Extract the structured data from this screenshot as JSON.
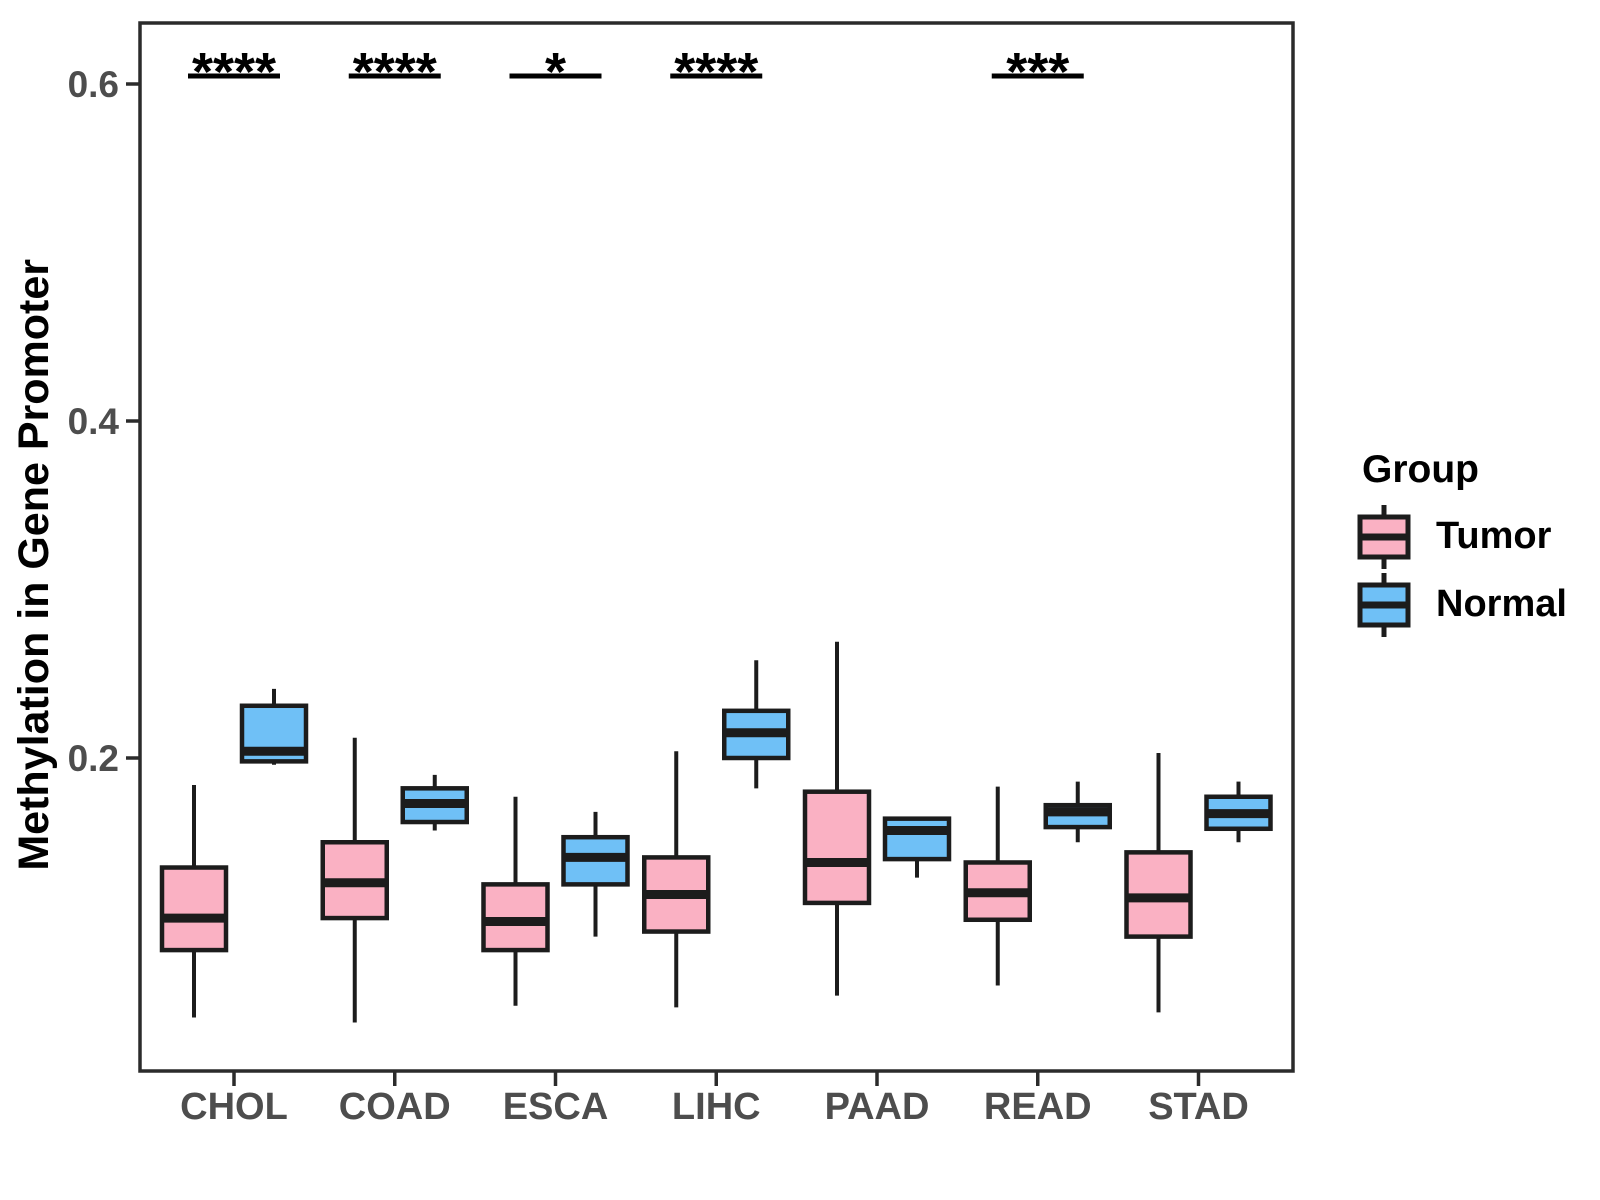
{
  "chart_data": {
    "type": "grouped_boxplot",
    "title": "",
    "ylabel": "Methylation in Gene Promoter",
    "xlabel": "",
    "categories": [
      "CHOL",
      "COAD",
      "ESCA",
      "LIHC",
      "PAAD",
      "READ",
      "STAD"
    ],
    "groups": [
      "Tumor",
      "Normal"
    ],
    "ylim": [
      0.02,
      0.64
    ],
    "yticks": [
      {
        "value": 0.2,
        "label": "0.2"
      },
      {
        "value": 0.4,
        "label": "0.4"
      },
      {
        "value": 0.6,
        "label": "0.6"
      }
    ],
    "grid": false,
    "legend": {
      "title": "Group",
      "position": "right",
      "items": [
        {
          "label": "Tumor",
          "color": "#FAB1C3"
        },
        {
          "label": "Normal",
          "color": "#6FC0F6"
        }
      ]
    },
    "series": [
      {
        "name": "Tumor",
        "color": "#FAB1C3",
        "boxes": [
          {
            "category": "CHOL",
            "whisker_low": 0.046,
            "q1": 0.086,
            "median": 0.105,
            "q3": 0.135,
            "whisker_high": 0.184
          },
          {
            "category": "COAD",
            "whisker_low": 0.043,
            "q1": 0.105,
            "median": 0.126,
            "q3": 0.15,
            "whisker_high": 0.212
          },
          {
            "category": "ESCA",
            "whisker_low": 0.053,
            "q1": 0.086,
            "median": 0.103,
            "q3": 0.125,
            "whisker_high": 0.177
          },
          {
            "category": "LIHC",
            "whisker_low": 0.052,
            "q1": 0.097,
            "median": 0.119,
            "q3": 0.141,
            "whisker_high": 0.204
          },
          {
            "category": "PAAD",
            "whisker_low": 0.059,
            "q1": 0.114,
            "median": 0.138,
            "q3": 0.18,
            "whisker_high": 0.269
          },
          {
            "category": "READ",
            "whisker_low": 0.065,
            "q1": 0.104,
            "median": 0.12,
            "q3": 0.138,
            "whisker_high": 0.183
          },
          {
            "category": "STAD",
            "whisker_low": 0.049,
            "q1": 0.094,
            "median": 0.117,
            "q3": 0.144,
            "whisker_high": 0.203
          }
        ]
      },
      {
        "name": "Normal",
        "color": "#6FC0F6",
        "boxes": [
          {
            "category": "CHOL",
            "whisker_low": 0.196,
            "q1": 0.198,
            "median": 0.204,
            "q3": 0.231,
            "whisker_high": 0.241
          },
          {
            "category": "COAD",
            "whisker_low": 0.157,
            "q1": 0.162,
            "median": 0.173,
            "q3": 0.182,
            "whisker_high": 0.19
          },
          {
            "category": "ESCA",
            "whisker_low": 0.094,
            "q1": 0.125,
            "median": 0.141,
            "q3": 0.153,
            "whisker_high": 0.168
          },
          {
            "category": "LIHC",
            "whisker_low": 0.182,
            "q1": 0.2,
            "median": 0.215,
            "q3": 0.228,
            "whisker_high": 0.258
          },
          {
            "category": "PAAD",
            "whisker_low": 0.129,
            "q1": 0.14,
            "median": 0.157,
            "q3": 0.164,
            "whisker_high": 0.164
          },
          {
            "category": "READ",
            "whisker_low": 0.15,
            "q1": 0.159,
            "median": 0.168,
            "q3": 0.172,
            "whisker_high": 0.186
          },
          {
            "category": "STAD",
            "whisker_low": 0.15,
            "q1": 0.158,
            "median": 0.167,
            "q3": 0.177,
            "whisker_high": 0.186
          }
        ]
      }
    ],
    "annotations": [
      {
        "category": "CHOL",
        "label": "****"
      },
      {
        "category": "COAD",
        "label": "****"
      },
      {
        "category": "ESCA",
        "label": "*"
      },
      {
        "category": "LIHC",
        "label": "****"
      },
      {
        "category": "READ",
        "label": "***"
      }
    ]
  },
  "style": {
    "background": "#FFFFFF",
    "box_stroke": "#1C1C1C",
    "axis_color": "#2B2B2B",
    "tick_label_color": "#4D4D4D",
    "annotation_color": "#000000"
  }
}
